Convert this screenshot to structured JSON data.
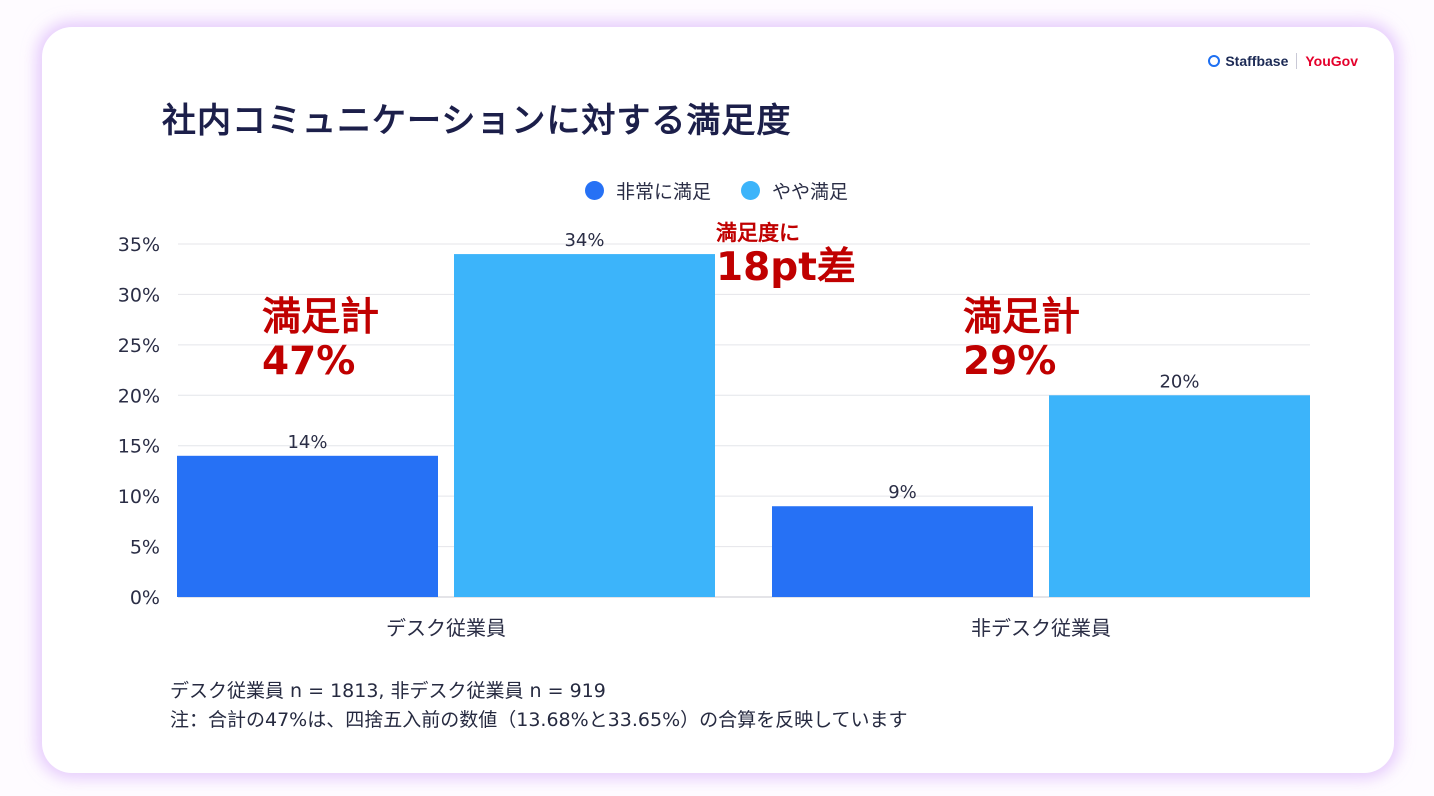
{
  "brand": {
    "left": "Staffbase",
    "right": "YouGov"
  },
  "title": "社内コミュニケーションに対する満足度",
  "colors": {
    "very_satisfied": "#2671f5",
    "somewhat_satisfied": "#3cb4fa",
    "annotation": "#c00000"
  },
  "annotations": {
    "desk_total_label": "満足計",
    "desk_total_value": "47%",
    "gap_label": "満足度に",
    "gap_value": "18pt差",
    "nondesk_total_label": "満足計",
    "nondesk_total_value": "29%"
  },
  "footnote": {
    "line1": "デスク従業員 n = 1813, 非デスク従業員 n = 919",
    "line2": "注：合計の47%は、四捨五入前の数値（13.68%と33.65%）の合算を反映しています"
  },
  "chart_data": {
    "type": "bar",
    "title": "社内コミュニケーションに対する満足度",
    "categories": [
      "デスク従業員",
      "非デスク従業員"
    ],
    "series": [
      {
        "name": "非常に満足",
        "values": [
          14,
          9
        ],
        "labels": [
          "14%",
          "9%"
        ],
        "color": "#2671f5"
      },
      {
        "name": "やや満足",
        "values": [
          34,
          20
        ],
        "labels": [
          "34%",
          "20%"
        ],
        "color": "#3cb4fa"
      }
    ],
    "ylim": [
      0,
      35
    ],
    "yticks": [
      0,
      5,
      10,
      15,
      20,
      25,
      30,
      35
    ],
    "ytick_labels": [
      "0%",
      "5%",
      "10%",
      "15%",
      "20%",
      "25%",
      "30%",
      "35%"
    ],
    "grid": true,
    "legend": "top-center",
    "xlabel": "",
    "ylabel": ""
  }
}
